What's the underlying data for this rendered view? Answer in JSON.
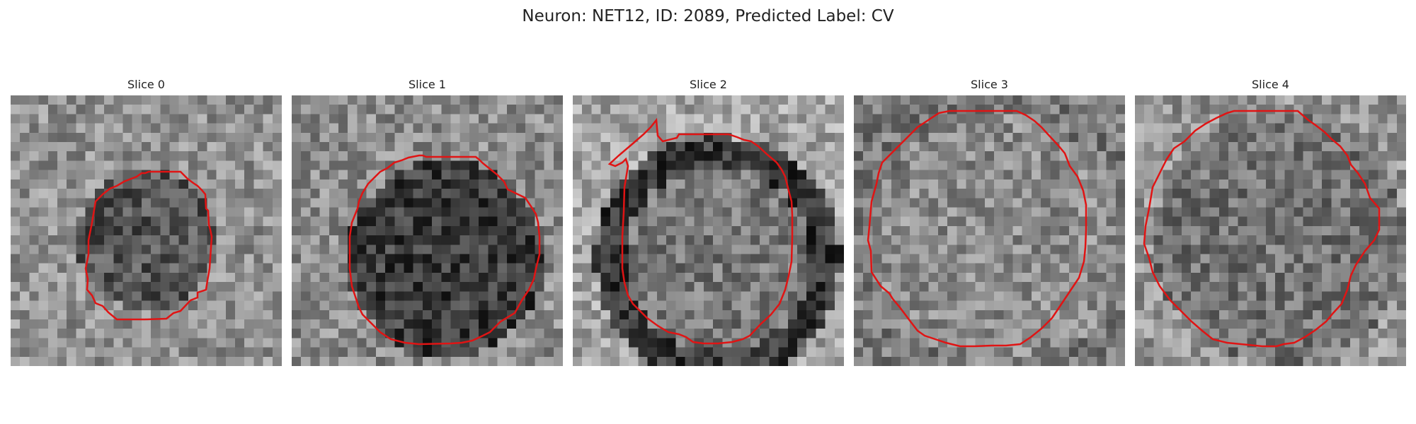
{
  "figure": {
    "title": "Neuron: NET12, ID: 2089, Predicted Label: CV",
    "contour_color": "#e01414",
    "panels": [
      {
        "title": "Slice 0",
        "shape": "small-center"
      },
      {
        "title": "Slice 1",
        "shape": "large-center"
      },
      {
        "title": "Slice 2",
        "shape": "large-center-notch"
      },
      {
        "title": "Slice 3",
        "shape": "very-large"
      },
      {
        "title": "Slice 4",
        "shape": "very-large"
      }
    ]
  }
}
